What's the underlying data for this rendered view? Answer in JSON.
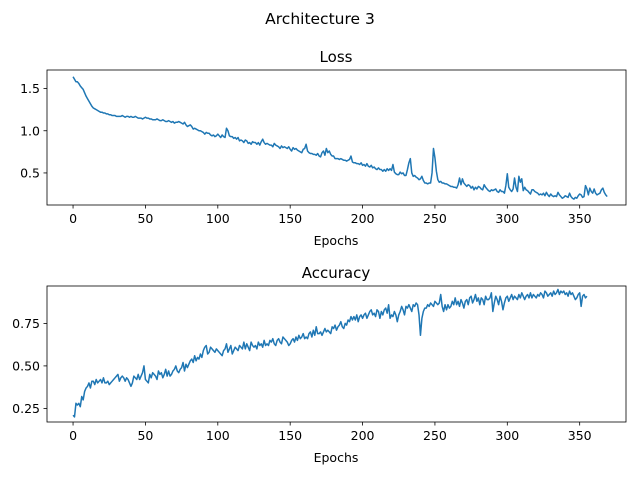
{
  "figure": {
    "suptitle": "Architecture 3"
  },
  "chart_data": [
    {
      "type": "line",
      "title": "Loss",
      "xlabel": "Epochs",
      "ylabel": "",
      "xlim": [
        -18,
        382
      ],
      "ylim": [
        0.12,
        1.72
      ],
      "xticks": [
        0,
        50,
        100,
        150,
        200,
        250,
        300,
        350
      ],
      "yticks": [
        0.5,
        1.0,
        1.5
      ],
      "color": "#1f77b4",
      "grid": false,
      "x_start": 0,
      "x_step": 1,
      "values": [
        1.64,
        1.61,
        1.58,
        1.58,
        1.56,
        1.53,
        1.51,
        1.49,
        1.45,
        1.41,
        1.38,
        1.35,
        1.32,
        1.29,
        1.27,
        1.26,
        1.25,
        1.24,
        1.23,
        1.22,
        1.22,
        1.21,
        1.21,
        1.2,
        1.2,
        1.19,
        1.19,
        1.18,
        1.18,
        1.18,
        1.17,
        1.17,
        1.17,
        1.17,
        1.18,
        1.17,
        1.16,
        1.17,
        1.17,
        1.16,
        1.17,
        1.16,
        1.16,
        1.17,
        1.16,
        1.15,
        1.15,
        1.15,
        1.14,
        1.15,
        1.16,
        1.15,
        1.15,
        1.14,
        1.14,
        1.13,
        1.13,
        1.13,
        1.14,
        1.13,
        1.12,
        1.12,
        1.13,
        1.12,
        1.11,
        1.11,
        1.12,
        1.11,
        1.1,
        1.11,
        1.09,
        1.1,
        1.1,
        1.11,
        1.1,
        1.09,
        1.08,
        1.1,
        1.07,
        1.05,
        1.06,
        1.07,
        1.05,
        1.02,
        1.03,
        1.02,
        1.01,
        1.0,
        1.0,
        0.99,
        0.98,
        0.96,
        0.98,
        0.97,
        0.97,
        0.95,
        0.94,
        0.95,
        0.93,
        0.94,
        0.96,
        0.94,
        0.92,
        0.95,
        0.93,
        0.92,
        1.03,
        1.0,
        0.94,
        0.93,
        0.93,
        0.91,
        0.92,
        0.9,
        0.92,
        0.88,
        0.89,
        0.88,
        0.86,
        0.89,
        0.88,
        0.85,
        0.86,
        0.84,
        0.87,
        0.86,
        0.86,
        0.84,
        0.86,
        0.83,
        0.87,
        0.9,
        0.86,
        0.84,
        0.85,
        0.84,
        0.83,
        0.83,
        0.81,
        0.85,
        0.83,
        0.82,
        0.81,
        0.79,
        0.82,
        0.8,
        0.81,
        0.8,
        0.79,
        0.81,
        0.78,
        0.76,
        0.8,
        0.78,
        0.79,
        0.77,
        0.76,
        0.75,
        0.74,
        0.78,
        0.79,
        0.84,
        0.76,
        0.74,
        0.73,
        0.73,
        0.72,
        0.72,
        0.71,
        0.73,
        0.7,
        0.69,
        0.74,
        0.76,
        0.71,
        0.79,
        0.74,
        0.76,
        0.72,
        0.7,
        0.7,
        0.67,
        0.67,
        0.67,
        0.66,
        0.67,
        0.66,
        0.65,
        0.65,
        0.64,
        0.65,
        0.66,
        0.7,
        0.63,
        0.62,
        0.62,
        0.61,
        0.61,
        0.6,
        0.62,
        0.59,
        0.6,
        0.58,
        0.61,
        0.58,
        0.57,
        0.59,
        0.56,
        0.57,
        0.55,
        0.54,
        0.56,
        0.54,
        0.54,
        0.52,
        0.54,
        0.52,
        0.55,
        0.53,
        0.55,
        0.53,
        0.6,
        0.51,
        0.49,
        0.48,
        0.48,
        0.51,
        0.49,
        0.5,
        0.47,
        0.47,
        0.54,
        0.62,
        0.67,
        0.5,
        0.46,
        0.47,
        0.45,
        0.44,
        0.42,
        0.43,
        0.46,
        0.41,
        0.38,
        0.38,
        0.37,
        0.38,
        0.38,
        0.5,
        0.79,
        0.68,
        0.52,
        0.42,
        0.39,
        0.4,
        0.38,
        0.38,
        0.37,
        0.37,
        0.36,
        0.35,
        0.34,
        0.34,
        0.33,
        0.33,
        0.32,
        0.36,
        0.44,
        0.36,
        0.43,
        0.38,
        0.36,
        0.34,
        0.36,
        0.35,
        0.32,
        0.34,
        0.3,
        0.33,
        0.31,
        0.34,
        0.33,
        0.31,
        0.3,
        0.36,
        0.33,
        0.31,
        0.29,
        0.28,
        0.3,
        0.29,
        0.3,
        0.31,
        0.28,
        0.27,
        0.3,
        0.28,
        0.28,
        0.26,
        0.35,
        0.49,
        0.33,
        0.3,
        0.28,
        0.31,
        0.44,
        0.33,
        0.28,
        0.46,
        0.39,
        0.43,
        0.29,
        0.33,
        0.3,
        0.29,
        0.27,
        0.25,
        0.3,
        0.3,
        0.28,
        0.27,
        0.26,
        0.24,
        0.25,
        0.24,
        0.26,
        0.23,
        0.27,
        0.24,
        0.22,
        0.25,
        0.23,
        0.22,
        0.23,
        0.22,
        0.27,
        0.24,
        0.22,
        0.2,
        0.21,
        0.23,
        0.22,
        0.21,
        0.26,
        0.22,
        0.2,
        0.19,
        0.21,
        0.2,
        0.23,
        0.25,
        0.24,
        0.21,
        0.22,
        0.35,
        0.31,
        0.24,
        0.32,
        0.28,
        0.26,
        0.31,
        0.26,
        0.24,
        0.25,
        0.26,
        0.3,
        0.32,
        0.27,
        0.24,
        0.22
      ]
    },
    {
      "type": "line",
      "title": "Accuracy",
      "xlabel": "Epochs",
      "ylabel": "",
      "xlim": [
        -18,
        382
      ],
      "ylim": [
        0.17,
        0.97
      ],
      "xticks": [
        0,
        50,
        100,
        150,
        200,
        250,
        300,
        350
      ],
      "yticks": [
        0.25,
        0.5,
        0.75
      ],
      "color": "#1f77b4",
      "grid": false,
      "x_start": 0,
      "x_step": 1,
      "values": [
        0.21,
        0.2,
        0.28,
        0.27,
        0.28,
        0.26,
        0.32,
        0.3,
        0.35,
        0.37,
        0.38,
        0.4,
        0.37,
        0.41,
        0.41,
        0.39,
        0.42,
        0.4,
        0.41,
        0.42,
        0.4,
        0.43,
        0.4,
        0.4,
        0.41,
        0.39,
        0.4,
        0.41,
        0.42,
        0.43,
        0.44,
        0.45,
        0.41,
        0.43,
        0.44,
        0.43,
        0.41,
        0.43,
        0.42,
        0.4,
        0.38,
        0.4,
        0.44,
        0.43,
        0.42,
        0.45,
        0.42,
        0.44,
        0.46,
        0.5,
        0.42,
        0.41,
        0.4,
        0.45,
        0.43,
        0.46,
        0.45,
        0.44,
        0.42,
        0.47,
        0.45,
        0.46,
        0.43,
        0.45,
        0.48,
        0.44,
        0.47,
        0.44,
        0.45,
        0.47,
        0.48,
        0.5,
        0.47,
        0.46,
        0.48,
        0.49,
        0.52,
        0.47,
        0.51,
        0.49,
        0.51,
        0.53,
        0.54,
        0.52,
        0.56,
        0.53,
        0.55,
        0.54,
        0.57,
        0.55,
        0.59,
        0.61,
        0.62,
        0.57,
        0.58,
        0.61,
        0.6,
        0.59,
        0.58,
        0.6,
        0.59,
        0.58,
        0.57,
        0.56,
        0.59,
        0.6,
        0.63,
        0.58,
        0.6,
        0.62,
        0.57,
        0.59,
        0.61,
        0.6,
        0.59,
        0.62,
        0.61,
        0.6,
        0.64,
        0.6,
        0.63,
        0.61,
        0.59,
        0.64,
        0.62,
        0.61,
        0.62,
        0.6,
        0.64,
        0.62,
        0.63,
        0.61,
        0.65,
        0.62,
        0.63,
        0.62,
        0.65,
        0.64,
        0.66,
        0.63,
        0.62,
        0.65,
        0.66,
        0.64,
        0.63,
        0.67,
        0.66,
        0.65,
        0.64,
        0.62,
        0.63,
        0.65,
        0.66,
        0.64,
        0.67,
        0.65,
        0.68,
        0.66,
        0.67,
        0.69,
        0.66,
        0.67,
        0.66,
        0.69,
        0.7,
        0.67,
        0.71,
        0.68,
        0.73,
        0.69,
        0.69,
        0.7,
        0.68,
        0.7,
        0.72,
        0.7,
        0.71,
        0.7,
        0.69,
        0.73,
        0.72,
        0.74,
        0.71,
        0.73,
        0.74,
        0.76,
        0.73,
        0.72,
        0.75,
        0.74,
        0.77,
        0.76,
        0.79,
        0.77,
        0.79,
        0.77,
        0.8,
        0.76,
        0.79,
        0.8,
        0.78,
        0.8,
        0.81,
        0.78,
        0.8,
        0.82,
        0.83,
        0.8,
        0.81,
        0.79,
        0.83,
        0.82,
        0.78,
        0.82,
        0.8,
        0.83,
        0.84,
        0.81,
        0.86,
        0.78,
        0.8,
        0.79,
        0.82,
        0.8,
        0.76,
        0.8,
        0.82,
        0.85,
        0.83,
        0.8,
        0.85,
        0.84,
        0.86,
        0.84,
        0.82,
        0.86,
        0.85,
        0.87,
        0.86,
        0.8,
        0.68,
        0.78,
        0.82,
        0.84,
        0.84,
        0.86,
        0.85,
        0.87,
        0.86,
        0.85,
        0.88,
        0.87,
        0.86,
        0.87,
        0.92,
        0.85,
        0.82,
        0.86,
        0.83,
        0.86,
        0.84,
        0.85,
        0.88,
        0.86,
        0.9,
        0.86,
        0.88,
        0.85,
        0.89,
        0.87,
        0.84,
        0.88,
        0.89,
        0.86,
        0.9,
        0.91,
        0.87,
        0.89,
        0.92,
        0.88,
        0.9,
        0.86,
        0.9,
        0.89,
        0.86,
        0.91,
        0.89,
        0.89,
        0.9,
        0.93,
        0.82,
        0.87,
        0.91,
        0.89,
        0.86,
        0.91,
        0.88,
        0.83,
        0.87,
        0.9,
        0.91,
        0.88,
        0.9,
        0.92,
        0.89,
        0.91,
        0.9,
        0.89,
        0.92,
        0.9,
        0.93,
        0.91,
        0.89,
        0.91,
        0.92,
        0.9,
        0.93,
        0.9,
        0.92,
        0.91,
        0.9,
        0.92,
        0.91,
        0.93,
        0.92,
        0.9,
        0.94,
        0.93,
        0.91,
        0.92,
        0.93,
        0.91,
        0.94,
        0.92,
        0.93,
        0.95,
        0.92,
        0.94,
        0.93,
        0.94,
        0.92,
        0.93,
        0.91,
        0.94,
        0.92,
        0.93,
        0.91,
        0.89,
        0.9,
        0.92,
        0.93,
        0.85,
        0.91,
        0.92,
        0.9,
        0.91
      ]
    }
  ]
}
